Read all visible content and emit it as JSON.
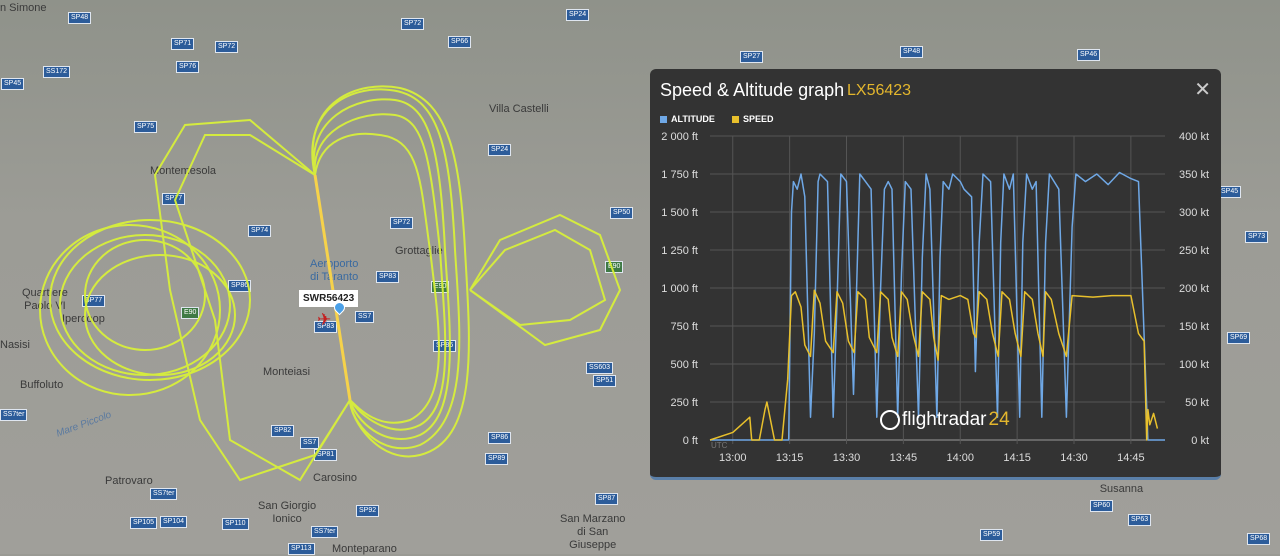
{
  "map": {
    "places": [
      "n Simone",
      "Villa Castelli",
      "Montemesola",
      "Grottaglie",
      "Aeroporto\ndi Taranto",
      "Quartiere\nPaolo VI",
      "Ipercoop",
      "Nasisi",
      "Buffoluto",
      "Monteiasi",
      "Carosino",
      "Patrovaro",
      "San Giorgio\nIonico",
      "San Marzano\ndi San\nGiuseppe",
      "Monteparano",
      "Torre Santa\nSusanna"
    ],
    "water": "Mare Piccolo",
    "roads": [
      "SP48",
      "SP71",
      "SP72",
      "SP72",
      "SP66",
      "SP24",
      "SS172",
      "SP76",
      "SP75",
      "SP24",
      "SP77",
      "SP72",
      "SP74",
      "SP50",
      "SP83",
      "SP27",
      "SP48",
      "SP46",
      "SP45",
      "SP73",
      "SP69",
      "SP60",
      "SP63",
      "SP59",
      "SP68",
      "SP77",
      "SP86",
      "SP86",
      "SS7",
      "SP83",
      "SS603",
      "SP51",
      "SP82",
      "SS7",
      "SP81",
      "SP86",
      "SP89",
      "SS7ter",
      "SS7ter",
      "SP105",
      "SP104",
      "SP110",
      "SP92",
      "SS7ter",
      "SP113",
      "SP87",
      "SP45",
      "E90",
      "E90",
      "E90"
    ],
    "callsign": "SWR56423",
    "track_color": "#d8f03a"
  },
  "panel": {
    "title": "Speed & Altitude graph",
    "flight": "LX56423",
    "close": "✕",
    "legend": [
      {
        "label": "ALTITUDE",
        "color": "#6fa8e6"
      },
      {
        "label": "SPEED",
        "color": "#e8c02c"
      }
    ],
    "watermark": {
      "main": "flightradar",
      "suffix": "24"
    }
  },
  "chart_data": {
    "type": "line",
    "x_axis": {
      "label": "UTC",
      "ticks": [
        "13:00",
        "13:15",
        "13:30",
        "13:45",
        "14:00",
        "14:15",
        "14:30",
        "14:45"
      ],
      "range": [
        "12:54",
        "14:54"
      ]
    },
    "y_left": {
      "ticks": [
        "0 ft",
        "250 ft",
        "500 ft",
        "750 ft",
        "1 000 ft",
        "1 250 ft",
        "1 500 ft",
        "1 750 ft",
        "2 000 ft"
      ],
      "range": [
        0,
        2000
      ],
      "unit": "ft"
    },
    "y_right": {
      "ticks": [
        "0 kt",
        "50 kt",
        "100 kt",
        "150 kt",
        "200 kt",
        "250 kt",
        "300 kt",
        "350 kt",
        "400 kt"
      ],
      "range": [
        0,
        400
      ],
      "unit": "kt"
    },
    "grid": true,
    "legend_position": "top-left",
    "series": [
      {
        "name": "ALTITUDE",
        "axis": "left",
        "color": "#6fa8e6",
        "points": [
          [
            "12:54:00",
            0
          ],
          [
            "13:14:45",
            0
          ],
          [
            "13:15:30",
            1500
          ],
          [
            "13:16:00",
            1700
          ],
          [
            "13:17:00",
            1650
          ],
          [
            "13:18:00",
            1750
          ],
          [
            "13:19:00",
            1600
          ],
          [
            "13:20:30",
            150
          ],
          [
            "13:21:30",
            700
          ],
          [
            "13:22:30",
            1700
          ],
          [
            "13:23:00",
            1750
          ],
          [
            "13:25:00",
            1700
          ],
          [
            "13:26:30",
            150
          ],
          [
            "13:27:30",
            900
          ],
          [
            "13:28:30",
            1750
          ],
          [
            "13:30:00",
            1700
          ],
          [
            "13:31:50",
            300
          ],
          [
            "13:32:40",
            1000
          ],
          [
            "13:33:30",
            1750
          ],
          [
            "13:35:00",
            1700
          ],
          [
            "13:36:30",
            1650
          ],
          [
            "13:38:00",
            150
          ],
          [
            "13:39:00",
            1000
          ],
          [
            "13:40:00",
            1650
          ],
          [
            "13:41:00",
            1700
          ],
          [
            "13:42:00",
            1650
          ],
          [
            "13:43:30",
            150
          ],
          [
            "13:44:30",
            1100
          ],
          [
            "13:45:30",
            1700
          ],
          [
            "13:47:00",
            1650
          ],
          [
            "13:49:00",
            150
          ],
          [
            "13:50:00",
            1200
          ],
          [
            "13:51:00",
            1750
          ],
          [
            "13:52:00",
            1650
          ],
          [
            "13:53:50",
            150
          ],
          [
            "13:54:40",
            1200
          ],
          [
            "13:55:30",
            1700
          ],
          [
            "13:57:00",
            1650
          ],
          [
            "13:58:00",
            1750
          ],
          [
            "14:00:00",
            1700
          ],
          [
            "14:01:00",
            1650
          ],
          [
            "14:03:00",
            1600
          ],
          [
            "14:04:00",
            450
          ],
          [
            "14:05:00",
            1300
          ],
          [
            "14:06:00",
            1750
          ],
          [
            "14:08:00",
            1700
          ],
          [
            "14:09:50",
            150
          ],
          [
            "14:10:40",
            1300
          ],
          [
            "14:11:30",
            1750
          ],
          [
            "14:13:00",
            1650
          ],
          [
            "14:14:00",
            1750
          ],
          [
            "14:15:40",
            150
          ],
          [
            "14:16:30",
            1300
          ],
          [
            "14:17:30",
            1750
          ],
          [
            "14:19:00",
            1650
          ],
          [
            "14:20:00",
            1700
          ],
          [
            "14:21:30",
            150
          ],
          [
            "14:22:30",
            1300
          ],
          [
            "14:23:30",
            1750
          ],
          [
            "14:26:00",
            1650
          ],
          [
            "14:28:00",
            150
          ],
          [
            "14:29:30",
            1400
          ],
          [
            "14:30:30",
            1750
          ],
          [
            "14:33:00",
            1700
          ],
          [
            "14:36:00",
            1750
          ],
          [
            "14:39:00",
            1680
          ],
          [
            "14:42:00",
            1760
          ],
          [
            "14:45:00",
            1720
          ],
          [
            "14:47:00",
            1700
          ],
          [
            "14:49:30",
            0
          ],
          [
            "14:54:00",
            0
          ]
        ]
      },
      {
        "name": "SPEED",
        "axis": "right",
        "color": "#e8c02c",
        "points": [
          [
            "12:54:00",
            0
          ],
          [
            "13:00:00",
            10
          ],
          [
            "13:04:30",
            30
          ],
          [
            "13:05:00",
            0
          ],
          [
            "13:07:00",
            0
          ],
          [
            "13:08:30",
            40
          ],
          [
            "13:09:00",
            50
          ],
          [
            "13:10:00",
            25
          ],
          [
            "13:11:00",
            0
          ],
          [
            "13:13:00",
            0
          ],
          [
            "13:14:30",
            80
          ],
          [
            "13:15:30",
            190
          ],
          [
            "13:16:30",
            195
          ],
          [
            "13:18:00",
            175
          ],
          [
            "13:19:00",
            125
          ],
          [
            "13:20:30",
            110
          ],
          [
            "13:21:30",
            197
          ],
          [
            "13:23:00",
            180
          ],
          [
            "13:24:30",
            130
          ],
          [
            "13:26:30",
            115
          ],
          [
            "13:27:30",
            195
          ],
          [
            "13:29:00",
            180
          ],
          [
            "13:30:30",
            130
          ],
          [
            "13:32:00",
            115
          ],
          [
            "13:33:00",
            195
          ],
          [
            "13:35:00",
            185
          ],
          [
            "13:36:00",
            135
          ],
          [
            "13:38:00",
            115
          ],
          [
            "13:39:00",
            195
          ],
          [
            "13:41:00",
            185
          ],
          [
            "13:42:00",
            135
          ],
          [
            "13:43:30",
            110
          ],
          [
            "13:44:30",
            195
          ],
          [
            "13:46:00",
            185
          ],
          [
            "13:47:30",
            140
          ],
          [
            "13:49:00",
            110
          ],
          [
            "13:50:00",
            195
          ],
          [
            "13:52:00",
            185
          ],
          [
            "13:53:00",
            135
          ],
          [
            "13:54:10",
            105
          ],
          [
            "13:55:00",
            190
          ],
          [
            "13:57:00",
            185
          ],
          [
            "14:00:00",
            190
          ],
          [
            "14:02:00",
            185
          ],
          [
            "14:03:30",
            140
          ],
          [
            "14:04:10",
            135
          ],
          [
            "14:05:00",
            195
          ],
          [
            "14:07:00",
            185
          ],
          [
            "14:08:30",
            140
          ],
          [
            "14:10:00",
            110
          ],
          [
            "14:11:00",
            195
          ],
          [
            "14:13:00",
            185
          ],
          [
            "14:14:30",
            140
          ],
          [
            "14:16:00",
            110
          ],
          [
            "14:17:00",
            195
          ],
          [
            "14:19:00",
            185
          ],
          [
            "14:20:30",
            140
          ],
          [
            "14:21:50",
            110
          ],
          [
            "14:22:30",
            195
          ],
          [
            "14:24:00",
            185
          ],
          [
            "14:26:00",
            140
          ],
          [
            "14:28:00",
            110
          ],
          [
            "14:29:30",
            190
          ],
          [
            "14:35:00",
            188
          ],
          [
            "14:40:00",
            190
          ],
          [
            "14:45:00",
            190
          ],
          [
            "14:47:00",
            140
          ],
          [
            "14:48:30",
            130
          ],
          [
            "14:49:10",
            0
          ],
          [
            "14:49:30",
            40
          ],
          [
            "14:50:00",
            20
          ],
          [
            "14:51:00",
            35
          ],
          [
            "14:52:00",
            15
          ]
        ]
      }
    ]
  }
}
